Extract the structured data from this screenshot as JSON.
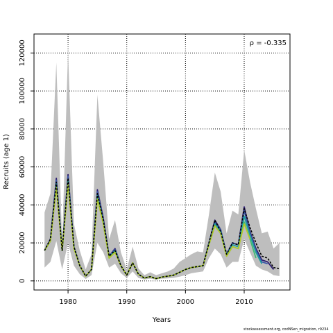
{
  "chart_data": {
    "type": "line",
    "annotation": "ρ = -0.335",
    "xlabel": "Years",
    "ylabel": "Recruits (age 1)",
    "xlim": [
      1974.2,
      2017.8
    ],
    "ylim": [
      -4800,
      130000
    ],
    "x_ticks": [
      1980,
      1990,
      2000,
      2010
    ],
    "y_ticks": [
      0,
      20000,
      40000,
      60000,
      80000,
      100000,
      120000
    ],
    "grid": true,
    "band": {
      "color": "#bebebe",
      "x": [
        1976,
        1977,
        1978,
        1979,
        1980,
        1981,
        1982,
        1983,
        1984,
        1985,
        1986,
        1987,
        1988,
        1989,
        1990,
        1991,
        1992,
        1993,
        1994,
        1995,
        1996,
        1997,
        1998,
        1999,
        2000,
        2001,
        2002,
        2003,
        2004,
        2005,
        2006,
        2007,
        2008,
        2009,
        2010,
        2011,
        2012,
        2013,
        2014,
        2015,
        2016
      ],
      "lower": [
        7000,
        10000,
        21000,
        6000,
        20000,
        8000,
        3500,
        1000,
        3000,
        20000,
        15000,
        7000,
        9000,
        4000,
        1500,
        5000,
        1500,
        800,
        1200,
        700,
        1200,
        1300,
        1600,
        2200,
        3000,
        4000,
        4500,
        5000,
        12000,
        17000,
        14000,
        7000,
        10000,
        10000,
        22000,
        15000,
        8000,
        6000,
        5000,
        3000,
        2500
      ],
      "upper": [
        36000,
        46000,
        115000,
        20000,
        121000,
        30000,
        16000,
        6000,
        14000,
        98000,
        62000,
        22000,
        32000,
        15000,
        6000,
        18000,
        6500,
        3000,
        4500,
        3000,
        4000,
        5000,
        6500,
        10000,
        12000,
        14000,
        15500,
        15000,
        35000,
        57000,
        47000,
        25000,
        37000,
        35000,
        69000,
        52000,
        38000,
        25000,
        26000,
        17000,
        20000
      ]
    },
    "series": [
      {
        "color": "#000000",
        "dashed": true,
        "x": [
          1976,
          1977,
          1978,
          1979,
          1980,
          1981,
          1982,
          1983,
          1984,
          1985,
          1986,
          1987,
          1988,
          1989,
          1990,
          1991,
          1992,
          1993,
          1994,
          1995,
          1996,
          1997,
          1998,
          1999,
          2000,
          2001,
          2002,
          2003,
          2004,
          2005,
          2006,
          2007,
          2008,
          2009,
          2010,
          2011,
          2012,
          2013,
          2014,
          2015,
          2016
        ],
        "values": [
          16000,
          22000,
          52000,
          16000,
          54000,
          18000,
          8000,
          2500,
          6000,
          46000,
          32000,
          13000,
          16000,
          8000,
          3000,
          9500,
          3500,
          1500,
          2200,
          1200,
          2000,
          2500,
          3000,
          4500,
          6000,
          7000,
          7500,
          8000,
          20000,
          32000,
          26000,
          14000,
          20000,
          19000,
          38000,
          28000,
          20000,
          13000,
          12000,
          7000,
          6500
        ]
      },
      {
        "color": "#2b1b6e",
        "dashed": false,
        "x": [
          1976,
          1977,
          1978,
          1979,
          1980,
          1981,
          1982,
          1983,
          1984,
          1985,
          1986,
          1987,
          1988,
          1989,
          1990,
          1991,
          1992,
          1993,
          1994,
          1995,
          1996,
          1997,
          1998,
          1999,
          2000,
          2001,
          2002,
          2003,
          2004,
          2005,
          2006,
          2007,
          2008,
          2009,
          2010,
          2011,
          2012,
          2013,
          2014,
          2015
        ],
        "values": [
          16000,
          22000,
          54000,
          16000,
          56000,
          18000,
          8000,
          2500,
          6000,
          48000,
          33000,
          13000,
          17000,
          8000,
          3000,
          9500,
          3500,
          1500,
          2200,
          1200,
          2000,
          2500,
          3000,
          4500,
          6000,
          7000,
          7500,
          8000,
          20000,
          32000,
          27000,
          14000,
          20000,
          19000,
          39000,
          26000,
          17000,
          11000,
          10000,
          6000
        ]
      },
      {
        "color": "#3a57a8",
        "dashed": false,
        "x": [
          1976,
          1977,
          1978,
          1979,
          1980,
          1981,
          1982,
          1983,
          1984,
          1985,
          1986,
          1987,
          1988,
          1989,
          1990,
          1991,
          1992,
          1993,
          1994,
          1995,
          1996,
          1997,
          1998,
          1999,
          2000,
          2001,
          2002,
          2003,
          2004,
          2005,
          2006,
          2007,
          2008,
          2009,
          2010,
          2011,
          2012,
          2013,
          2014
        ],
        "values": [
          16000,
          22000,
          53000,
          16000,
          55000,
          18000,
          8000,
          2500,
          6000,
          47000,
          32000,
          13000,
          16500,
          8000,
          3000,
          9500,
          3500,
          1500,
          2200,
          1200,
          2000,
          2500,
          3000,
          4500,
          6000,
          7000,
          7500,
          8000,
          20000,
          31000,
          27000,
          14000,
          20000,
          19000,
          37000,
          25000,
          16000,
          10000,
          9000
        ]
      },
      {
        "color": "#1f9e9e",
        "dashed": false,
        "x": [
          1976,
          1977,
          1978,
          1979,
          1980,
          1981,
          1982,
          1983,
          1984,
          1985,
          1986,
          1987,
          1988,
          1989,
          1990,
          1991,
          1992,
          1993,
          1994,
          1995,
          1996,
          1997,
          1998,
          1999,
          2000,
          2001,
          2002,
          2003,
          2004,
          2005,
          2006,
          2007,
          2008,
          2009,
          2010,
          2011,
          2012,
          2013
        ],
        "values": [
          16000,
          21000,
          51000,
          16000,
          53000,
          17500,
          8000,
          2500,
          6000,
          45000,
          31000,
          12500,
          16000,
          8000,
          3000,
          9500,
          3500,
          1500,
          2200,
          1200,
          2000,
          2500,
          3000,
          4500,
          6000,
          7000,
          7500,
          8000,
          19500,
          30000,
          26000,
          13500,
          19000,
          18000,
          34000,
          24000,
          15000,
          9000
        ]
      },
      {
        "color": "#3fbc73",
        "dashed": false,
        "x": [
          1976,
          1977,
          1978,
          1979,
          1980,
          1981,
          1982,
          1983,
          1984,
          1985,
          1986,
          1987,
          1988,
          1989,
          1990,
          1991,
          1992,
          1993,
          1994,
          1995,
          1996,
          1997,
          1998,
          1999,
          2000,
          2001,
          2002,
          2003,
          2004,
          2005,
          2006,
          2007,
          2008,
          2009,
          2010,
          2011,
          2012
        ],
        "values": [
          16000,
          21000,
          50000,
          16000,
          52000,
          17000,
          8000,
          2500,
          6000,
          44000,
          30000,
          12000,
          15500,
          8000,
          3000,
          9500,
          3500,
          1500,
          2200,
          1200,
          2000,
          2500,
          3000,
          4500,
          6000,
          7000,
          7500,
          8000,
          19000,
          29000,
          25000,
          13000,
          18000,
          17000,
          31000,
          22000,
          12000
        ]
      },
      {
        "color": "#b5c92b",
        "dashed": false,
        "x": [
          1976,
          1977,
          1978,
          1979,
          1980,
          1981,
          1982,
          1983,
          1984,
          1985,
          1986,
          1987,
          1988,
          1989,
          1990,
          1991,
          1992,
          1993,
          1994,
          1995,
          1996,
          1997,
          1998,
          1999,
          2000,
          2001,
          2002,
          2003,
          2004,
          2005,
          2006,
          2007,
          2008,
          2009,
          2010,
          2011
        ],
        "values": [
          16000,
          21000,
          49000,
          16000,
          51000,
          17000,
          8000,
          2500,
          6000,
          43000,
          30000,
          12000,
          15000,
          8000,
          3000,
          9500,
          3500,
          1500,
          2200,
          1200,
          2000,
          2500,
          3000,
          4500,
          6000,
          7000,
          7500,
          8000,
          19000,
          29000,
          25000,
          13000,
          18000,
          17000,
          30000,
          22000
        ]
      }
    ]
  },
  "footer_text": "stockassessment.org, codNSen_migration, r9234"
}
